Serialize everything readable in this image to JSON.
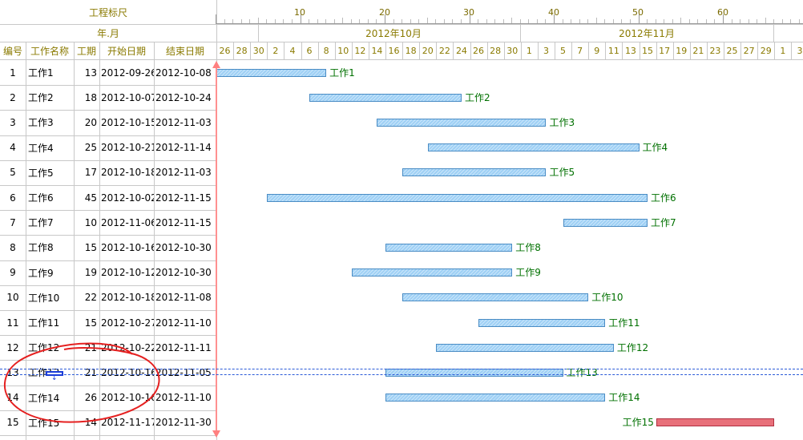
{
  "header": {
    "ruler_title": "工程标尺",
    "period_title": "年.月",
    "ruler_ticks": [
      "10",
      "20",
      "30",
      "40",
      "50",
      "60"
    ],
    "months": [
      "2012年10月",
      "2012年11月"
    ],
    "days": [
      "26",
      "28",
      "30",
      "2",
      "4",
      "6",
      "8",
      "10",
      "12",
      "14",
      "16",
      "18",
      "20",
      "22",
      "24",
      "26",
      "28",
      "30",
      "1",
      "3",
      "5",
      "7",
      "9",
      "11",
      "13",
      "15",
      "17",
      "19",
      "21",
      "23",
      "25",
      "27",
      "29",
      "1",
      "3"
    ]
  },
  "columns": {
    "id": "编号",
    "name": "工作名称",
    "duration": "工期",
    "start": "开始日期",
    "end": "结束日期"
  },
  "tasks": [
    {
      "id": "1",
      "name": "工作1",
      "duration": "13",
      "start": "2012-09-26",
      "end": "2012-10-08",
      "label": "工作1"
    },
    {
      "id": "2",
      "name": "工作2",
      "duration": "18",
      "start": "2012-10-07",
      "end": "2012-10-24",
      "label": "工作2"
    },
    {
      "id": "3",
      "name": "工作3",
      "duration": "20",
      "start": "2012-10-15",
      "end": "2012-11-03",
      "label": "工作3"
    },
    {
      "id": "4",
      "name": "工作4",
      "duration": "25",
      "start": "2012-10-21",
      "end": "2012-11-14",
      "label": "工作4"
    },
    {
      "id": "5",
      "name": "工作5",
      "duration": "17",
      "start": "2012-10-18",
      "end": "2012-11-03",
      "label": "工作5"
    },
    {
      "id": "6",
      "name": "工作6",
      "duration": "45",
      "start": "2012-10-02",
      "end": "2012-11-15",
      "label": "工作6"
    },
    {
      "id": "7",
      "name": "工作7",
      "duration": "10",
      "start": "2012-11-06",
      "end": "2012-11-15",
      "label": "工作7"
    },
    {
      "id": "8",
      "name": "工作8",
      "duration": "15",
      "start": "2012-10-16",
      "end": "2012-10-30",
      "label": "工作8"
    },
    {
      "id": "9",
      "name": "工作9",
      "duration": "19",
      "start": "2012-10-12",
      "end": "2012-10-30",
      "label": "工作9"
    },
    {
      "id": "10",
      "name": "工作10",
      "duration": "22",
      "start": "2012-10-18",
      "end": "2012-11-08",
      "label": "工作10"
    },
    {
      "id": "11",
      "name": "工作11",
      "duration": "15",
      "start": "2012-10-27",
      "end": "2012-11-10",
      "label": "工作11"
    },
    {
      "id": "12",
      "name": "工作12",
      "duration": "21",
      "start": "2012-10-22",
      "end": "2012-11-11",
      "label": "工作12"
    },
    {
      "id": "13",
      "name": "工作13",
      "duration": "21",
      "start": "2012-10-16",
      "end": "2012-11-05",
      "label": "工作13",
      "selected": true
    },
    {
      "id": "14",
      "name": "工作14",
      "duration": "26",
      "start": "2012-10-16",
      "end": "2012-11-10",
      "label": "工作14"
    },
    {
      "id": "15",
      "name": "工作15",
      "duration": "14",
      "start": "2012-11-17",
      "end": "2012-11-30",
      "label": "工作15",
      "critical": true,
      "label_left": true
    }
  ],
  "colors": {
    "bar_fill": "#9ed0f5",
    "bar_border": "#4a8cc4",
    "critical_fill": "#e8707a",
    "label": "#007000",
    "header_text": "#8a7a00",
    "selection": "#2a5ad8",
    "annotation": "#e02020",
    "today_line": "#ff8080"
  }
}
